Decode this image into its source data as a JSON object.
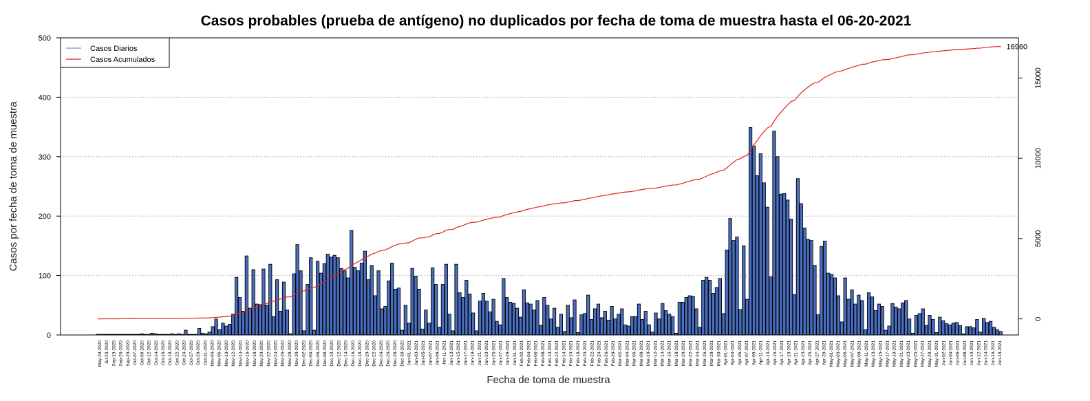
{
  "chart_data": {
    "type": "bar",
    "title": "Casos probables (prueba de antígeno) no duplicados por fecha de toma de muestra hasta el 06-20-2021",
    "xlabel": "Fecha de toma de muestra",
    "ylabel": "Casos por fecha de toma de muestra",
    "ylim": [
      0,
      500
    ],
    "y_ticks": [
      0,
      100,
      200,
      300,
      400,
      500
    ],
    "y2lim": [
      -1000,
      17500
    ],
    "y2_ticks": [
      0,
      5000,
      10000,
      15000
    ],
    "grid": "horizontal dotted",
    "legend_position": "top-left",
    "colors": {
      "bars": "#4a6fc0",
      "bar_border": "#000000",
      "cumulative": "#e02020",
      "grid": "#999999"
    },
    "x_tick_labels": [
      "May-29-2020",
      "Jul-23-2020",
      "Sep-19-2020",
      "Sep-26-2020",
      "Sep-29-2020",
      "Oct-07-2020",
      "Oct-09-2020",
      "Oct-12-2020",
      "Oct-14-2020",
      "Oct-16-2020",
      "Oct-19-2020",
      "Oct-22-2020",
      "Oct-24-2020",
      "Oct-27-2020",
      "Oct-29-2020",
      "Oct-31-2020",
      "Nov-04-2020",
      "Nov-06-2020",
      "Nov-10-2020",
      "Nov-12-2020",
      "Nov-14-2020",
      "Nov-16-2020",
      "Nov-18-2020",
      "Nov-20-2020",
      "Nov-22-2020",
      "Nov-24-2020",
      "Nov-26-2020",
      "Nov-28-2020",
      "Nov-30-2020",
      "Dec-02-2020",
      "Dec-04-2020",
      "Dec-06-2020",
      "Dec-08-2020",
      "Dec-10-2020",
      "Dec-12-2020",
      "Dec-14-2020",
      "Dec-16-2020",
      "Dec-18-2020",
      "Dec-20-2020",
      "Dec-22-2020",
      "Dec-24-2020",
      "Dec-26-2020",
      "Dec-28-2020",
      "Dec-30-2020",
      "Jan-01-2021",
      "Jan-03-2021",
      "Jan-05-2021",
      "Jan-07-2021",
      "Jan-09-2021",
      "Jan-11-2021",
      "Jan-13-2021",
      "Jan-15-2021",
      "Jan-17-2021",
      "Jan-19-2021",
      "Jan-21-2021",
      "Jan-23-2021",
      "Jan-25-2021",
      "Jan-27-2021",
      "Jan-29-2021",
      "Jan-31-2021",
      "Feb-02-2021",
      "Feb-04-2021",
      "Feb-06-2021",
      "Feb-08-2021",
      "Feb-10-2021",
      "Feb-12-2021",
      "Feb-14-2021",
      "Feb-16-2021",
      "Feb-18-2021",
      "Feb-20-2021",
      "Feb-22-2021",
      "Feb-24-2021",
      "Feb-26-2021",
      "Feb-28-2021",
      "Mar-02-2021",
      "Mar-04-2021",
      "Mar-06-2021",
      "Mar-08-2021",
      "Mar-10-2021",
      "Mar-12-2021",
      "Mar-14-2021",
      "Mar-16-2021",
      "Mar-18-2021",
      "Mar-20-2021",
      "Mar-22-2021",
      "Mar-24-2021",
      "Mar-26-2021",
      "Mar-28-2021",
      "Mar-30-2021",
      "Apr-01-2021",
      "Apr-03-2021",
      "Apr-05-2021",
      "Apr-07-2021",
      "Apr-09-2021",
      "Apr-11-2021",
      "Apr-13-2021",
      "Apr-15-2021",
      "Apr-17-2021",
      "Apr-19-2021",
      "Apr-21-2021",
      "Apr-23-2021",
      "Apr-25-2021",
      "Apr-27-2021",
      "Apr-29-2021",
      "May-01-2021",
      "May-03-2021",
      "May-05-2021",
      "May-07-2021",
      "May-09-2021",
      "May-11-2021",
      "May-13-2021",
      "May-15-2021",
      "May-17-2021",
      "May-19-2021",
      "May-21-2021",
      "May-23-2021",
      "May-25-2021",
      "May-27-2021",
      "May-29-2021",
      "May-31-2021",
      "Jun-02-2021",
      "Jun-04-2021",
      "Jun-06-2021",
      "Jun-08-2021",
      "Jun-10-2021",
      "Jun-12-2021",
      "Jun-14-2021",
      "Jun-16-2021",
      "Jun-18-2021"
    ],
    "series": [
      {
        "name": "Casos Diarios",
        "values": [
          1,
          1,
          1,
          1,
          1,
          1,
          1,
          1,
          1,
          1,
          1,
          1,
          1,
          2,
          1,
          1,
          3,
          2,
          1,
          1,
          1,
          1,
          2,
          1,
          2,
          1,
          8,
          1,
          1,
          1,
          11,
          3,
          2,
          5,
          14,
          27,
          9,
          20,
          15,
          18,
          35,
          97,
          63,
          40,
          133,
          45,
          110,
          52,
          51,
          111,
          50,
          119,
          31,
          93,
          40,
          89,
          42,
          2,
          103,
          152,
          108,
          7,
          85,
          130,
          8,
          124,
          104,
          120,
          136,
          131,
          134,
          130,
          112,
          108,
          96,
          176,
          114,
          108,
          121,
          141,
          93,
          117,
          66,
          108,
          44,
          48,
          91,
          121,
          77,
          79,
          8,
          50,
          20,
          112,
          99,
          77,
          10,
          42,
          20,
          113,
          85,
          13,
          85,
          119,
          35,
          7,
          119,
          71,
          63,
          92,
          69,
          37,
          7,
          57,
          70,
          57,
          39,
          60,
          23,
          17,
          95,
          63,
          55,
          53,
          45,
          30,
          76,
          54,
          52,
          42,
          58,
          16,
          63,
          50,
          27,
          45,
          13,
          35,
          6,
          50,
          29,
          59,
          4,
          34,
          36,
          67,
          26,
          44,
          52,
          29,
          40,
          25,
          48,
          27,
          35,
          44,
          17,
          15,
          31,
          31,
          52,
          26,
          40,
          17,
          5,
          37,
          27,
          53,
          41,
          35,
          31,
          3,
          55,
          55,
          63,
          66,
          65,
          44,
          13,
          92,
          97,
          92,
          70,
          80,
          95,
          36,
          143,
          196,
          159,
          165,
          43,
          150,
          60,
          349,
          318,
          268,
          305,
          256,
          215,
          98,
          343,
          300,
          237,
          238,
          227,
          195,
          68,
          263,
          221,
          180,
          161,
          159,
          117,
          34,
          149,
          158,
          104,
          102,
          96,
          66,
          22,
          96,
          60,
          76,
          52,
          67,
          58,
          9,
          71,
          64,
          41,
          52,
          48,
          8,
          15,
          53,
          47,
          44,
          54,
          58,
          27,
          3,
          33,
          36,
          44,
          16,
          33,
          26,
          4,
          30,
          24,
          19,
          17,
          20,
          21,
          16,
          2,
          14,
          14,
          12,
          26,
          5,
          28,
          21,
          23,
          13,
          9,
          6
        ]
      },
      {
        "name": "Casos Acumulados",
        "total": 16960
      }
    ]
  },
  "legend": {
    "items": [
      {
        "label": "Casos Diarios",
        "color": "#6f8fd0"
      },
      {
        "label": "Casos Acumulados",
        "color": "#e02020"
      }
    ]
  },
  "end_label": "16960"
}
